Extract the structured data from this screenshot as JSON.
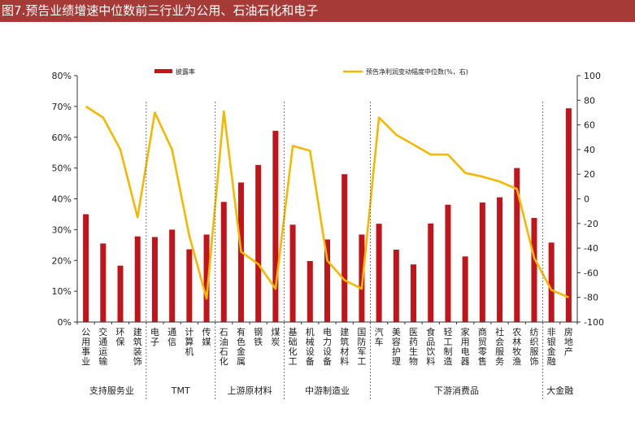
{
  "figure_title": "图7.预告业绩增速中位数前三行业为公用、石油石化和电子",
  "chart_data": {
    "type": "bar",
    "categories": [
      "公用事业",
      "交通运输",
      "环保",
      "建筑装饰",
      "电子",
      "通信",
      "计算机",
      "传媒",
      "石油石化",
      "有色金属",
      "钢铁",
      "煤炭",
      "基础化工",
      "机械设备",
      "电力设备",
      "建筑材料",
      "国防军工",
      "汽车",
      "美容护理",
      "医药生物",
      "食品饮料",
      "轻工制造",
      "家用电器",
      "商贸零售",
      "社会服务",
      "农林牧渔",
      "纺织服饰",
      "非银金融",
      "房地产"
    ],
    "series": [
      {
        "name": "披露率",
        "type": "bar",
        "axis": "left",
        "color": "#c0151b",
        "values": [
          35.0,
          25.5,
          18.3,
          27.8,
          27.6,
          30.0,
          23.6,
          28.4,
          39.0,
          45.3,
          51.0,
          62.1,
          31.6,
          19.8,
          26.8,
          48.0,
          28.4,
          31.9,
          23.5,
          18.7,
          32.0,
          38.1,
          21.3,
          38.8,
          40.5,
          50.0,
          33.8,
          25.8,
          69.4
        ]
      },
      {
        "name": "预告净利润变动幅度中位数(%，右)",
        "type": "line",
        "axis": "right",
        "color": "#f5b800",
        "values": [
          75,
          66,
          40,
          -15,
          70,
          40,
          -30,
          -81,
          71,
          -43,
          -53,
          -73,
          43,
          39,
          -50,
          -66,
          -73,
          66,
          52,
          44,
          36,
          36,
          21,
          18,
          14,
          8,
          -48,
          -74,
          -80
        ]
      }
    ],
    "y_left": {
      "min": 0,
      "max": 80,
      "step": 10,
      "ticks": [
        "0%",
        "10%",
        "20%",
        "30%",
        "40%",
        "50%",
        "60%",
        "70%",
        "80%"
      ]
    },
    "y_right": {
      "min": -100,
      "max": 100,
      "step": 20,
      "ticks": [
        "-100",
        "-80",
        "-60",
        "-40",
        "-20",
        "0",
        "20",
        "40",
        "60",
        "80",
        "100"
      ]
    },
    "groups": [
      {
        "label": "支持服务业",
        "count": 4
      },
      {
        "label": "TMT",
        "count": 4
      },
      {
        "label": "上游原材料",
        "count": 4
      },
      {
        "label": "中游制造业",
        "count": 5
      },
      {
        "label": "下游消费品",
        "count": 10
      },
      {
        "label": "大金融",
        "count": 2
      }
    ],
    "legend_position": "top",
    "grid": false
  }
}
